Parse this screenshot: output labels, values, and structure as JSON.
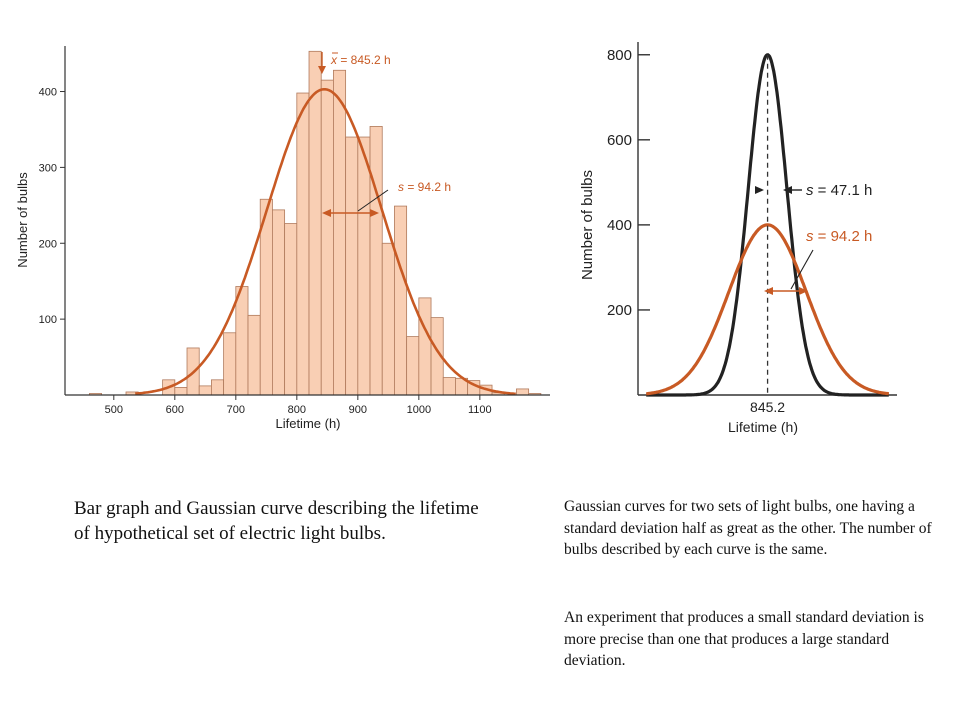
{
  "colors": {
    "bar_fill": "#f9cfb4",
    "bar_stroke": "#b07a5c",
    "gauss_orange": "#c85a24",
    "gauss_black": "#222222",
    "axis": "#333333"
  },
  "chart_data": [
    {
      "type": "bar",
      "xlabel": "Lifetime (h)",
      "ylabel": "Number of bulbs",
      "xlim": [
        420,
        1215
      ],
      "ylim": [
        0,
        460
      ],
      "x_ticks": [
        500,
        600,
        700,
        800,
        900,
        1000,
        1100
      ],
      "y_ticks": [
        100,
        200,
        300,
        400
      ],
      "bin_width": 20,
      "bins": [
        {
          "x": 460,
          "value": 2
        },
        {
          "x": 520,
          "value": 4
        },
        {
          "x": 580,
          "value": 20
        },
        {
          "x": 600,
          "value": 10
        },
        {
          "x": 620,
          "value": 62
        },
        {
          "x": 640,
          "value": 12
        },
        {
          "x": 660,
          "value": 20
        },
        {
          "x": 680,
          "value": 82
        },
        {
          "x": 700,
          "value": 143
        },
        {
          "x": 720,
          "value": 105
        },
        {
          "x": 740,
          "value": 258
        },
        {
          "x": 760,
          "value": 244
        },
        {
          "x": 780,
          "value": 226
        },
        {
          "x": 800,
          "value": 398
        },
        {
          "x": 820,
          "value": 453
        },
        {
          "x": 840,
          "value": 415
        },
        {
          "x": 860,
          "value": 428
        },
        {
          "x": 880,
          "value": 340
        },
        {
          "x": 900,
          "value": 340
        },
        {
          "x": 920,
          "value": 354
        },
        {
          "x": 940,
          "value": 200
        },
        {
          "x": 960,
          "value": 249
        },
        {
          "x": 980,
          "value": 77
        },
        {
          "x": 1000,
          "value": 128
        },
        {
          "x": 1020,
          "value": 102
        },
        {
          "x": 1040,
          "value": 23
        },
        {
          "x": 1060,
          "value": 22
        },
        {
          "x": 1080,
          "value": 19
        },
        {
          "x": 1100,
          "value": 13
        },
        {
          "x": 1120,
          "value": 3
        },
        {
          "x": 1160,
          "value": 8
        },
        {
          "x": 1180,
          "value": 2
        }
      ],
      "gaussian": {
        "mean": 845.2,
        "sd": 94.2,
        "peak": 403
      },
      "annotations": {
        "mean_prefix": "x",
        "mean_label": " = 845.2 h",
        "sd_prefix": "s",
        "sd_label": " = 94.2 h"
      }
    },
    {
      "type": "line",
      "xlabel": "Lifetime (h)",
      "ylabel": "Number of bulbs",
      "xlim": [
        530,
        1160
      ],
      "ylim": [
        0,
        830
      ],
      "y_ticks": [
        200,
        400,
        600,
        800
      ],
      "x_tick_label": "845.2",
      "series": [
        {
          "sd": 47.1,
          "peak": 800,
          "mean": 845.2,
          "label_prefix": "s",
          "label": " = 47.1 h"
        },
        {
          "sd": 94.2,
          "peak": 400,
          "mean": 845.2,
          "label_prefix": "s",
          "label": " = 94.2 h"
        }
      ]
    }
  ],
  "captions": {
    "left": "Bar graph and Gaussian curve describing the lifetime of hypothetical set of electric light bulbs.",
    "right_1": "Gaussian curves for two sets of light bulbs, one having a standard deviation half as great as the other. The number of bulbs described by each curve is the same.",
    "right_2": "An experiment that produces a small standard deviation is more precise than one that produces a large standard deviation."
  }
}
